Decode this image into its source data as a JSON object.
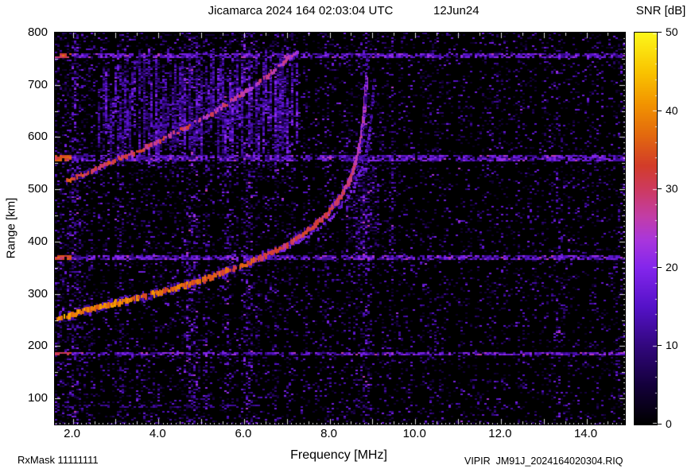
{
  "footer": {
    "rx_mask": "RxMask 11111111",
    "file_label": "VIPIR  JM91J_2024164020304.RIQ"
  },
  "chart_data": {
    "type": "heatmap",
    "title": "Jicamarca 2024 164 02:03:04 UTC",
    "date_label": "12Jun24",
    "xlabel": "Frequency [MHz]",
    "ylabel": "Range [km]",
    "colorbar_label": "SNR [dB]",
    "xlim": [
      1.58,
      14.9
    ],
    "ylim": [
      50,
      800
    ],
    "x_ticks": [
      2,
      4,
      6,
      8,
      10,
      12,
      14
    ],
    "x_tick_labels": [
      "2.0",
      "4.0",
      "6.0",
      "8.0",
      "10.0",
      "12.0",
      "14.0"
    ],
    "y_ticks": [
      100,
      200,
      300,
      400,
      500,
      600,
      700,
      800
    ],
    "colorbar_ticks": [
      0,
      10,
      20,
      30,
      40,
      50
    ],
    "colorbar_range": [
      0,
      50
    ],
    "colormap": [
      {
        "t": 0.0,
        "c": "#000000"
      },
      {
        "t": 0.1,
        "c": "#14003c"
      },
      {
        "t": 0.2,
        "c": "#32077e"
      },
      {
        "t": 0.3,
        "c": "#5512c8"
      },
      {
        "t": 0.4,
        "c": "#8426ec"
      },
      {
        "t": 0.47,
        "c": "#a936dc"
      },
      {
        "t": 0.53,
        "c": "#c23da8"
      },
      {
        "t": 0.6,
        "c": "#cd3a60"
      },
      {
        "t": 0.66,
        "c": "#d23c2a"
      },
      {
        "t": 0.74,
        "c": "#e36a0e"
      },
      {
        "t": 0.82,
        "c": "#f29500"
      },
      {
        "t": 0.9,
        "c": "#f9c400"
      },
      {
        "t": 1.0,
        "c": "#fcf61a"
      }
    ],
    "interference_bands": [
      {
        "km": 755,
        "half": 5
      },
      {
        "km": 560,
        "half": 5
      },
      {
        "km": 370,
        "half": 4
      },
      {
        "km": 185,
        "half": 4
      },
      {
        "km": 85,
        "half": 3,
        "fmax": 6.5,
        "density": 0.45,
        "dim": true
      }
    ],
    "rfi_columns": [
      {
        "f": 2.05,
        "w": 0.1,
        "s": 0.45
      },
      {
        "f": 3.1,
        "w": 0.07,
        "s": 0.2
      },
      {
        "f": 4.78,
        "w": 0.16,
        "s": 0.55
      },
      {
        "f": 5.12,
        "w": 0.06,
        "s": 0.25
      },
      {
        "f": 5.6,
        "w": 0.08,
        "s": 0.35
      },
      {
        "f": 6.1,
        "w": 0.14,
        "s": 0.5
      },
      {
        "f": 6.75,
        "w": 0.06,
        "s": 0.25
      },
      {
        "f": 7.05,
        "w": 0.05,
        "s": 0.2
      },
      {
        "f": 7.9,
        "w": 0.05,
        "s": 0.2
      },
      {
        "f": 8.85,
        "w": 0.12,
        "s": 0.4
      },
      {
        "f": 9.45,
        "w": 0.05,
        "s": 0.45
      },
      {
        "f": 10.4,
        "w": 0.06,
        "s": 0.18
      },
      {
        "f": 11.9,
        "w": 0.07,
        "s": 0.15
      },
      {
        "f": 12.4,
        "w": 0.05,
        "s": 0.15
      },
      {
        "f": 13.35,
        "w": 0.09,
        "s": 0.35
      },
      {
        "f": 14.25,
        "w": 0.05,
        "s": 0.18
      },
      {
        "f": 14.75,
        "w": 0.06,
        "s": 0.25
      }
    ],
    "blanked_columns": [
      {
        "f": 2.55,
        "w": 0.05,
        "s": 0.8
      },
      {
        "f": 2.9,
        "w": 0.05,
        "s": 0.7
      },
      {
        "f": 3.45,
        "w": 0.04,
        "s": 0.6
      },
      {
        "f": 5.0,
        "w": 0.04,
        "s": 0.7
      },
      {
        "f": 5.35,
        "w": 0.05,
        "s": 0.8
      },
      {
        "f": 5.9,
        "w": 0.04,
        "s": 0.8
      },
      {
        "f": 6.45,
        "w": 0.05,
        "s": 0.7
      },
      {
        "f": 7.3,
        "w": 0.06,
        "s": 0.8
      },
      {
        "f": 7.6,
        "w": 0.05,
        "s": 0.8
      },
      {
        "f": 8.2,
        "w": 0.05,
        "s": 0.6
      },
      {
        "f": 9.05,
        "w": 0.04,
        "s": 0.5
      },
      {
        "f": 10.05,
        "w": 0.06,
        "s": 0.6
      },
      {
        "f": 10.9,
        "w": 0.05,
        "s": 0.6
      },
      {
        "f": 11.35,
        "w": 0.05,
        "s": 0.5
      },
      {
        "f": 12.25,
        "w": 0.05,
        "s": 0.5
      },
      {
        "f": 12.9,
        "w": 0.04,
        "s": 0.5
      },
      {
        "f": 13.9,
        "w": 0.05,
        "s": 0.5
      },
      {
        "f": 14.5,
        "w": 0.04,
        "s": 0.4
      }
    ],
    "diffuse_region": {
      "f": [
        2.6,
        7.3
      ],
      "range_km": [
        540,
        770
      ],
      "count": 260
    },
    "noise": {
      "seed": 1337,
      "base": 0.16
    },
    "traces": {
      "critical_frequency_mhz": 8.85,
      "x_mode_offset_mhz": 0.18,
      "first_hop": [
        [
          1.6,
          252
        ],
        [
          1.9,
          259
        ],
        [
          2.2,
          266
        ],
        [
          2.6,
          274
        ],
        [
          3.0,
          282
        ],
        [
          3.4,
          290
        ],
        [
          3.8,
          298
        ],
        [
          4.2,
          307
        ],
        [
          4.6,
          316
        ],
        [
          5.0,
          326
        ],
        [
          5.4,
          337
        ],
        [
          5.8,
          349
        ],
        [
          6.2,
          362
        ],
        [
          6.6,
          377
        ],
        [
          7.0,
          394
        ],
        [
          7.3,
          410
        ],
        [
          7.6,
          428
        ],
        [
          7.9,
          450
        ],
        [
          8.15,
          474
        ],
        [
          8.35,
          500
        ],
        [
          8.52,
          530
        ],
        [
          8.64,
          562
        ],
        [
          8.72,
          598
        ],
        [
          8.78,
          636
        ],
        [
          8.82,
          676
        ],
        [
          8.85,
          716
        ]
      ],
      "second_hop": [
        [
          1.85,
          516
        ],
        [
          2.2,
          528
        ],
        [
          2.6,
          541
        ],
        [
          3.0,
          555
        ],
        [
          3.4,
          569
        ],
        [
          3.8,
          584
        ],
        [
          4.2,
          600
        ],
        [
          4.6,
          617
        ],
        [
          5.0,
          635
        ],
        [
          5.4,
          654
        ],
        [
          5.8,
          674
        ],
        [
          6.2,
          696
        ],
        [
          6.55,
          718
        ],
        [
          6.85,
          738
        ],
        [
          7.1,
          755
        ],
        [
          7.25,
          766
        ]
      ],
      "asymptote": [
        [
          8.62,
          520
        ],
        [
          8.7,
          560
        ],
        [
          8.76,
          600
        ],
        [
          8.81,
          645
        ],
        [
          8.84,
          690
        ],
        [
          8.86,
          735
        ],
        [
          8.87,
          765
        ]
      ]
    }
  }
}
